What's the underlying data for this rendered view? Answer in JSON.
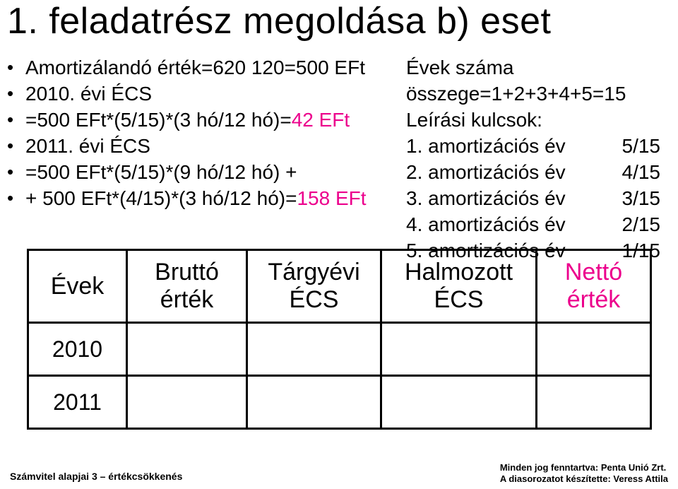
{
  "title": "1. feladatrész megoldása b) eset",
  "left": {
    "l1": "Amortizálandó érték=620 120=500 EFt",
    "l2": "2010. évi ÉCS",
    "l3a": "=500 EFt*(5/15)*(3 hó/12 hó)=",
    "l3b": "42 EFt",
    "l4": "2011. évi ÉCS",
    "l5": "=500 EFt*(5/15)*(9 hó/12 hó) +",
    "l6a": "+ 500 EFt*(4/15)*(3 hó/12 hó)=",
    "l6b": "158 EFt"
  },
  "right": {
    "r1": "Évek száma",
    "r2": "összege=1+2+3+4+5=15",
    "r3": "Leírási kulcsok:",
    "rows": [
      {
        "label": "1. amortizációs év",
        "val": "5/15"
      },
      {
        "label": "2. amortizációs év",
        "val": "4/15"
      },
      {
        "label": "3. amortizációs év",
        "val": "3/15"
      },
      {
        "label": "4. amortizációs év",
        "val": "2/15"
      },
      {
        "label": "5. amortizációs év",
        "val": "1/15"
      }
    ]
  },
  "table": {
    "headers": {
      "years": "Évek",
      "brutto_l1": "Bruttó",
      "brutto_l2": "érték",
      "targy_l1": "Tárgyévi",
      "targy_l2": "ÉCS",
      "halm_l1": "Halmozott",
      "halm_l2": "ÉCS",
      "netto_l1": "Nettó",
      "netto_l2": "érték"
    },
    "rows": [
      {
        "year": "2010"
      },
      {
        "year": "2011"
      }
    ]
  },
  "footer": {
    "left": "Számvitel alapjai 3 – értékcsökkenés",
    "right1": "Minden jog fenntartva: Penta Unió Zrt.",
    "right2": "A diasorozatot készítette: Veress Attila"
  },
  "colors": {
    "pink": "#ec008c",
    "text": "#000000",
    "bg": "#ffffff"
  }
}
